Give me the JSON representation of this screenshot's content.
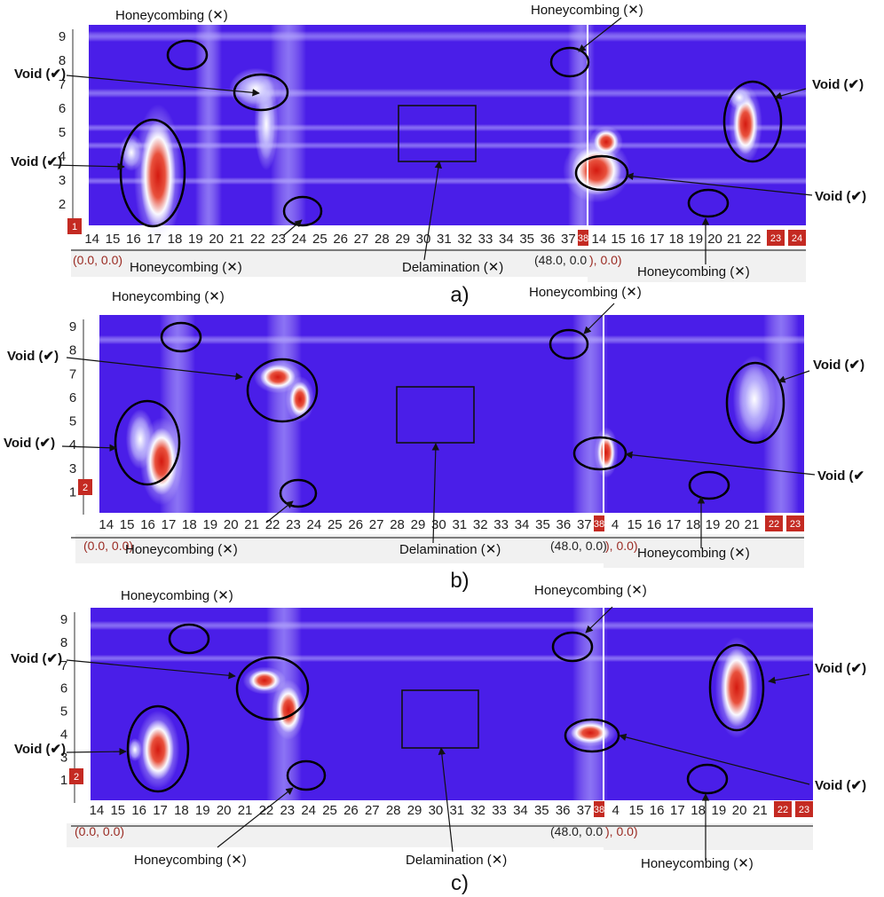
{
  "colors": {
    "background": "#4a1ee8",
    "hot": "#d42014",
    "badge": "#c42a22",
    "coord": "#9a2a22"
  },
  "panels": [
    {
      "label": "a)",
      "section_badge": "1",
      "y_ticks": [
        "9",
        "8",
        "7",
        "6",
        "5",
        "4",
        "3",
        "2"
      ],
      "x_ticks_left": [
        "14",
        "15",
        "16",
        "17",
        "18",
        "19",
        "20",
        "21",
        "22",
        "23",
        "24",
        "25",
        "26",
        "27",
        "28",
        "29",
        "30",
        "31",
        "32",
        "33",
        "34",
        "35",
        "36",
        "37"
      ],
      "x_ticks_right": [
        "14",
        "15",
        "16",
        "17",
        "18",
        "19",
        "20",
        "21",
        "22"
      ],
      "end_badges_left": [
        "38"
      ],
      "end_badges_right": [
        "23",
        "24"
      ],
      "coord_left": "(0.0, 0.0)",
      "coord_mid": "(48.0, 0.0",
      "coord_mid_tail": "), 0.0)",
      "labels": {
        "honey_top_left": "Honeycombing (✕)",
        "honey_top_right": "Honeycombing (✕)",
        "void_left_top": "Void (✔)",
        "void_left_bottom": "Void (✔)",
        "void_right_top": "Void (✔)",
        "void_right_bottom": "Void (✔)",
        "honey_bottom_left": "Honeycombing (✕)",
        "delamination": "Delamination (✕)",
        "honey_bottom_right": "Honeycombing (✕)"
      }
    },
    {
      "label": "b)",
      "section_badge": "2",
      "y_ticks": [
        "9",
        "8",
        "7",
        "6",
        "5",
        "4",
        "3",
        "1"
      ],
      "x_ticks_left": [
        "14",
        "15",
        "16",
        "17",
        "18",
        "19",
        "20",
        "21",
        "22",
        "23",
        "24",
        "25",
        "26",
        "27",
        "28",
        "29",
        "30",
        "31",
        "32",
        "33",
        "34",
        "35",
        "36",
        "37"
      ],
      "x_ticks_right": [
        "4",
        "15",
        "16",
        "17",
        "18",
        "19",
        "20",
        "21"
      ],
      "end_badges_left": [
        "38"
      ],
      "end_badges_right": [
        "22",
        "23"
      ],
      "coord_left": "(0.0, 0.0)",
      "coord_mid": "(48.0, 0.0)",
      "coord_mid_tail": "), 0.0)",
      "labels": {
        "honey_top_left": "Honeycombing (✕)",
        "honey_top_right": "Honeycombing (✕)",
        "void_left_top": "Void (✔)",
        "void_left_bottom": "Void (✔)",
        "void_right_top": "Void (✔)",
        "void_right_bottom": "Void (✔",
        "honey_bottom_left": "Honeycombing (✕)",
        "delamination": "Delamination (✕)",
        "honey_bottom_right": "Honeycombing (✕)"
      }
    },
    {
      "label": "c)",
      "section_badge": "2",
      "y_ticks": [
        "9",
        "8",
        "7",
        "6",
        "5",
        "4",
        "3",
        "1"
      ],
      "x_ticks_left": [
        "14",
        "15",
        "16",
        "17",
        "18",
        "19",
        "20",
        "21",
        "22",
        "23",
        "24",
        "25",
        "26",
        "27",
        "28",
        "29",
        "30",
        "31",
        "32",
        "33",
        "34",
        "35",
        "36",
        "37"
      ],
      "x_ticks_right": [
        "4",
        "15",
        "16",
        "17",
        "18",
        "19",
        "20",
        "21"
      ],
      "end_badges_left": [
        "38"
      ],
      "end_badges_right": [
        "22",
        "23"
      ],
      "coord_left": "(0.0, 0.0)",
      "coord_mid": "(48.0, 0.0",
      "coord_mid_tail": "), 0.0)",
      "labels": {
        "honey_top_left": "Honeycombing (✕)",
        "honey_top_right": "Honeycombing (✕)",
        "void_left_top": "Void (✔)",
        "void_left_bottom": "Void (✔)",
        "void_right_top": "Void (✔)",
        "void_right_bottom": "Void (✔)",
        "honey_bottom_left": "Honeycombing (✕)",
        "delamination": "Delamination (✕)",
        "honey_bottom_right": "Honeycombing (✕)"
      }
    }
  ]
}
